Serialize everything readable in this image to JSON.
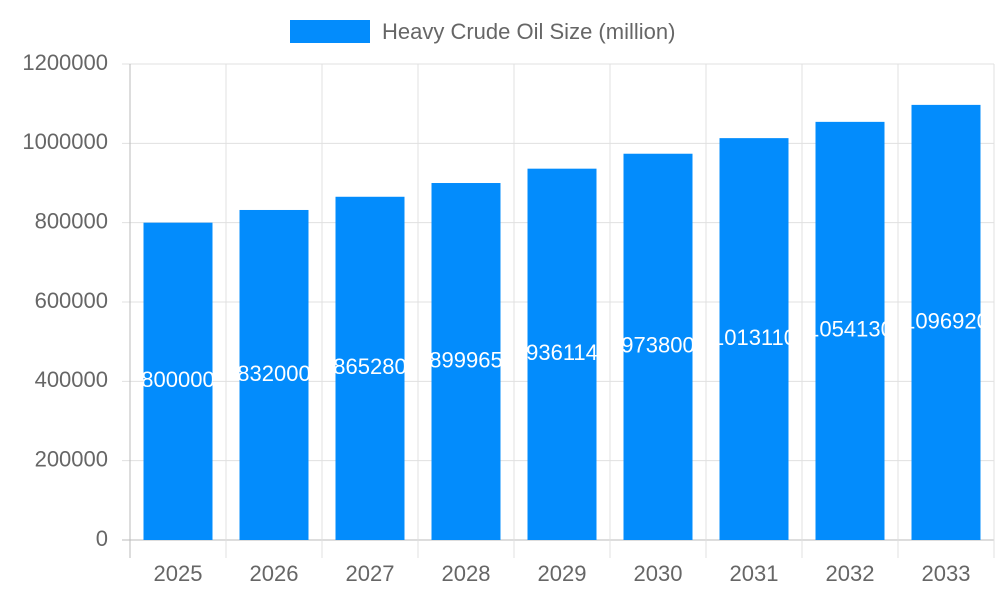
{
  "chart_data": {
    "type": "bar",
    "categories": [
      "2025",
      "2026",
      "2027",
      "2028",
      "2029",
      "2030",
      "2031",
      "2032",
      "2033"
    ],
    "series": [
      {
        "name": "Heavy Crude Oil Size (million)",
        "color": "#038cfc",
        "values": [
          800000,
          832000,
          865280,
          899965,
          936114,
          973800,
          1013110,
          1054130,
          1096920
        ]
      }
    ],
    "ylim": [
      0,
      1200000
    ],
    "yticks": [
      0,
      200000,
      400000,
      600000,
      800000,
      1000000,
      1200000
    ],
    "grid": true
  }
}
